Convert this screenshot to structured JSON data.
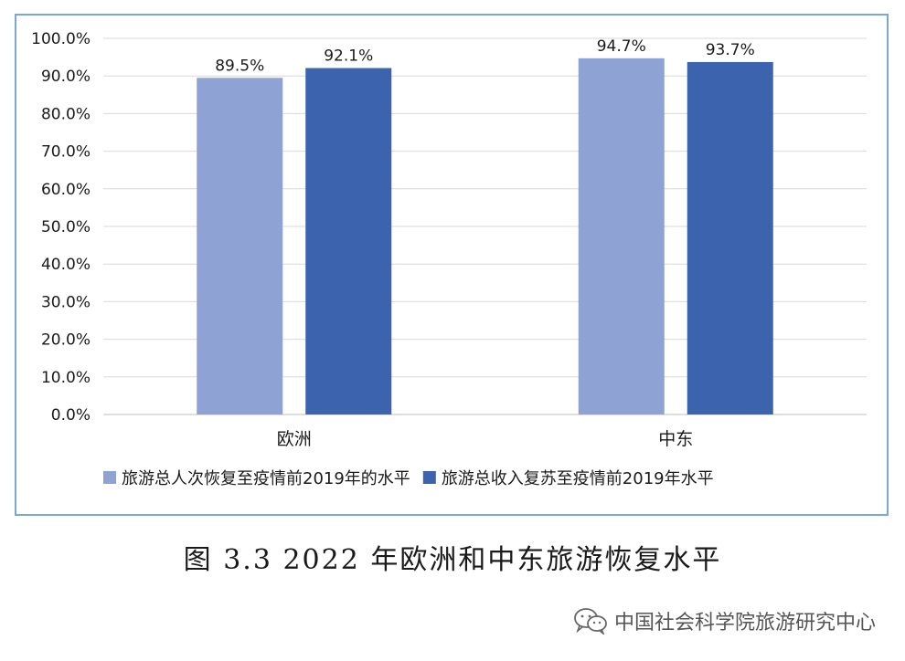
{
  "chart_data": {
    "type": "bar",
    "categories": [
      "欧洲",
      "中东"
    ],
    "series": [
      {
        "name": "旅游总人次恢复至疫情前2019年的水平",
        "values": [
          89.5,
          94.7
        ],
        "value_labels": [
          "89.5%",
          "94.7%"
        ],
        "color": "#8fa2d4"
      },
      {
        "name": "旅游总收入复苏至疫情前2019年水平",
        "values": [
          92.1,
          93.7
        ],
        "value_labels": [
          "92.1%",
          "93.7%"
        ],
        "color": "#3c64ae"
      }
    ],
    "ylim": [
      0,
      100
    ],
    "yticks": [
      0,
      10,
      20,
      30,
      40,
      50,
      60,
      70,
      80,
      90,
      100
    ],
    "ytick_labels": [
      "0.0%",
      "10.0%",
      "20.0%",
      "30.0%",
      "40.0%",
      "50.0%",
      "60.0%",
      "70.0%",
      "80.0%",
      "90.0%",
      "100.0%"
    ],
    "grid": true,
    "legend_position": "bottom",
    "gridline_color": "#d9d9d9",
    "frame_color": "#7aa7d6"
  },
  "caption": "图 3.3 2022 年欧洲和中东旅游恢复水平",
  "watermark": {
    "icon": "wechat-icon",
    "text": "中国社会科学院旅游研究中心"
  }
}
